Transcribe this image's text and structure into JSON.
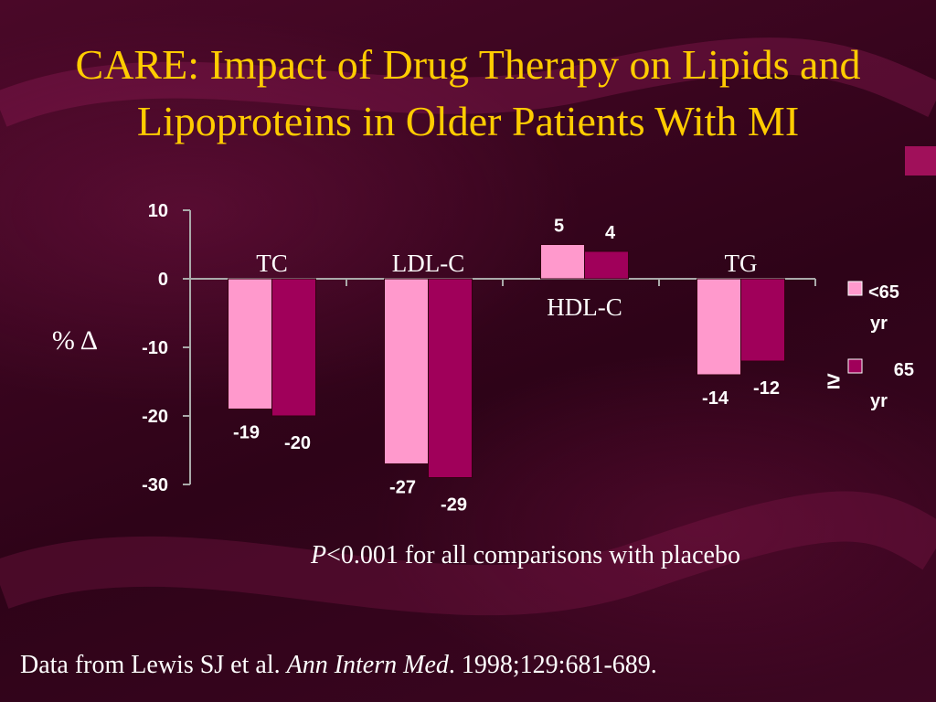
{
  "slide": {
    "title": "CARE: Impact of Drug Therapy on Lipids and Lipoproteins in Older Patients With MI",
    "footnote_p": "P",
    "footnote_rest": "<0.001 for all comparisons with placebo",
    "source_prefix": "Data from Lewis SJ et al. ",
    "source_journal": "Ann Intern Med",
    "source_suffix": ". 1998;129:681-689."
  },
  "colors": {
    "title": "#ffcc00",
    "series_young": "#ff99cc",
    "series_old": "#a0005a",
    "text": "#ffffff"
  },
  "chart_data": {
    "type": "bar",
    "categories": [
      "TC",
      "LDL-C",
      "HDL-C",
      "TG"
    ],
    "series": [
      {
        "name": "<65 yr",
        "values": [
          -19,
          -27,
          5,
          -14
        ]
      },
      {
        "name": "≥ 65 yr",
        "values": [
          -20,
          -29,
          4,
          -12
        ]
      }
    ],
    "ylabel": "% Δ",
    "ylim": [
      -30,
      10
    ],
    "yticks": [
      10,
      0,
      -10,
      -20,
      -30
    ],
    "legend": {
      "position": "right",
      "entries": [
        {
          "symbol": "",
          "line1": "<65",
          "line2": "yr"
        },
        {
          "symbol": "≥",
          "line1": "65",
          "line2": "yr"
        }
      ]
    },
    "grid": false
  }
}
